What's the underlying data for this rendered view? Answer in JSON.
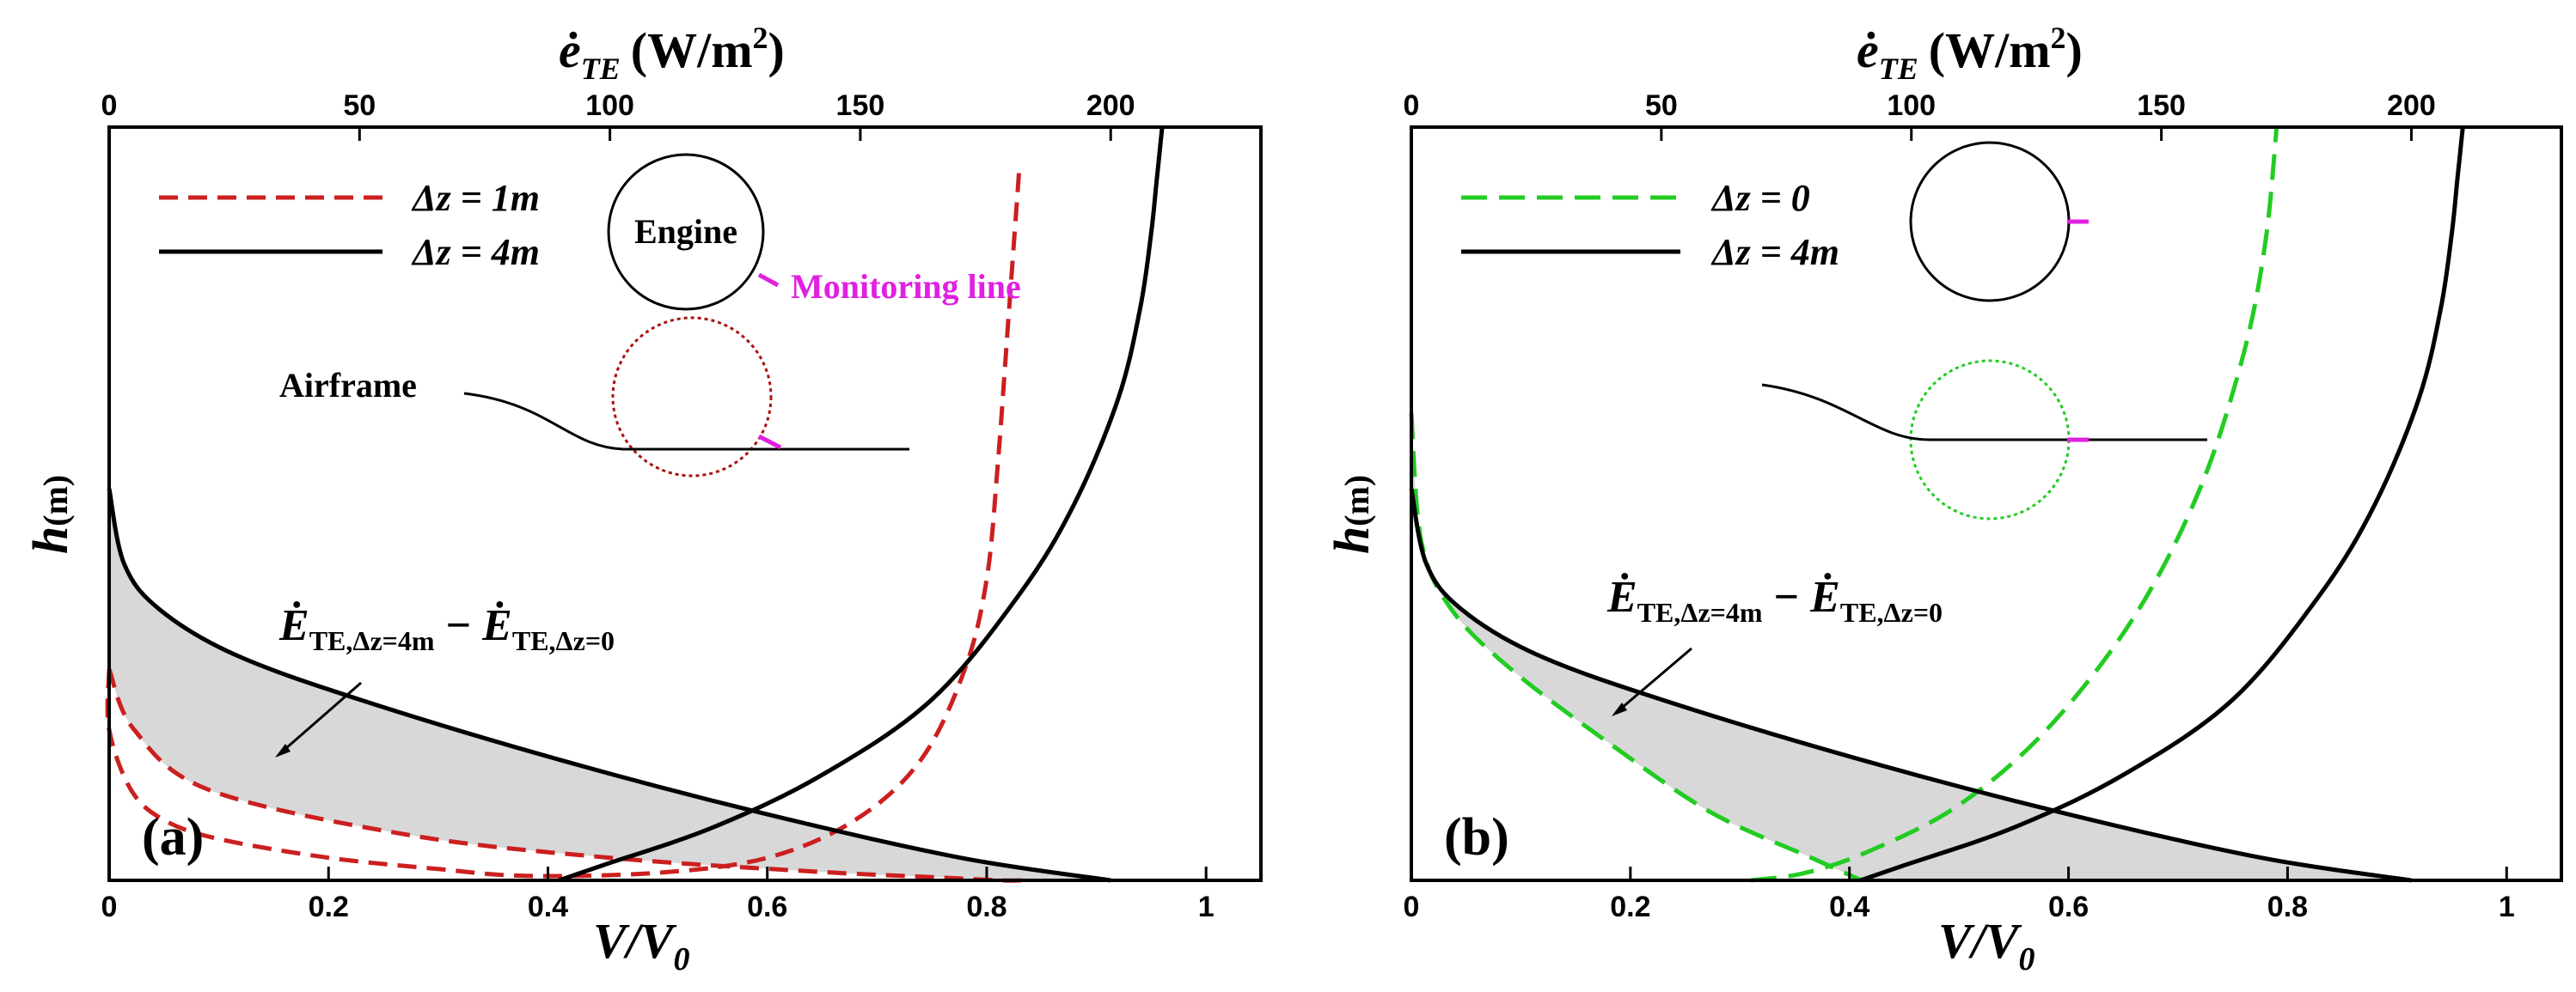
{
  "figure": {
    "panels": [
      "(a)",
      "(b)"
    ],
    "x_bottom_label": "V/V",
    "x_bottom_label_sub": "0",
    "x_top_label": "ė",
    "x_top_label_sub": "TE",
    "x_top_label_units": "(W/m",
    "x_top_label_units_sup": "2",
    "x_top_label_units_close": ")",
    "y_label": "h",
    "y_label_units": "(m)",
    "annotation_E_left": "Ė",
    "annotation_sub_left": "TE,Δz=4m",
    "annotation_minus": " − ",
    "annotation_E_right": "Ė",
    "annotation_sub_right": "TE,Δz=0"
  },
  "panel_a": {
    "legend": [
      {
        "label": "Δz = 1m",
        "color": "#cc1f1f",
        "dash": "dashed"
      },
      {
        "label": "Δz = 4m",
        "color": "#000000",
        "dash": "solid"
      }
    ],
    "engine_label": "Engine",
    "monitoring_label": "Monitoring line",
    "airframe_label": "Airframe"
  },
  "panel_b": {
    "legend": [
      {
        "label": "Δz = 0",
        "color": "#22cc22",
        "dash": "long-dashed"
      },
      {
        "label": "Δz = 4m",
        "color": "#000000",
        "dash": "solid"
      }
    ]
  },
  "chart_data": [
    {
      "type": "line",
      "title": "(a)",
      "xlabel": "V/V0",
      "ylabel": "h(m)",
      "xlim": [
        0,
        1.05
      ],
      "x_ticks": [
        "0",
        "0.2",
        "0.4",
        "0.6",
        "0.8",
        "1"
      ],
      "x2label": "e_TE (W/m^2)",
      "x2lim": [
        0,
        230
      ],
      "x2_ticks": [
        "0",
        "50",
        "100",
        "150",
        "200"
      ],
      "ylim": [
        0,
        1
      ],
      "series": [
        {
          "name": "Δz = 1m velocity",
          "axis": "bottom",
          "color": "#cc1f1f",
          "x": [
            0.0,
            0.0,
            0.02,
            0.05,
            0.1,
            0.2,
            0.3,
            0.38,
            0.5,
            0.6,
            0.68,
            0.74,
            0.78,
            0.8,
            0.81,
            0.82,
            0.83
          ],
          "y": [
            0.28,
            0.2,
            0.12,
            0.08,
            0.055,
            0.03,
            0.015,
            0.006,
            0.01,
            0.03,
            0.08,
            0.16,
            0.28,
            0.4,
            0.55,
            0.75,
            0.95
          ]
        },
        {
          "name": "Δz = 1m energy flux",
          "axis": "top",
          "color": "#cc1f1f",
          "x": [
            0.0,
            5,
            20,
            60,
            100,
            140,
            165,
            178,
            182,
            183
          ],
          "y": [
            0.28,
            0.2,
            0.12,
            0.06,
            0.03,
            0.012,
            0.004,
            0.0,
            0.0,
            0.0
          ]
        },
        {
          "name": "Δz = 4m velocity",
          "axis": "bottom",
          "color": "#000000",
          "x": [
            0.41,
            0.45,
            0.55,
            0.65,
            0.75,
            0.83,
            0.88,
            0.92,
            0.94,
            0.95,
            0.955,
            0.96
          ],
          "y": [
            0.0,
            0.02,
            0.07,
            0.14,
            0.24,
            0.38,
            0.5,
            0.64,
            0.76,
            0.86,
            0.93,
            1.0
          ]
        },
        {
          "name": "Δz = 4m energy flux",
          "axis": "top",
          "color": "#000000",
          "x": [
            0,
            3,
            10,
            25,
            50,
            90,
            130,
            170,
            200
          ],
          "y": [
            0.52,
            0.42,
            0.36,
            0.3,
            0.24,
            0.16,
            0.09,
            0.03,
            0.0
          ]
        }
      ]
    },
    {
      "type": "line",
      "title": "(b)",
      "xlabel": "V/V0",
      "ylabel": "h(m)",
      "xlim": [
        0,
        1.05
      ],
      "x_ticks": [
        "0",
        "0.2",
        "0.4",
        "0.6",
        "0.8",
        "1"
      ],
      "x2label": "e_TE (W/m^2)",
      "x2lim": [
        0,
        230
      ],
      "x2_ticks": [
        "0",
        "50",
        "100",
        "150",
        "200"
      ],
      "ylim": [
        0,
        1
      ],
      "series": [
        {
          "name": "Δz = 0 velocity",
          "axis": "bottom",
          "color": "#22cc22",
          "x": [
            0.31,
            0.36,
            0.42,
            0.5,
            0.58,
            0.66,
            0.72,
            0.76,
            0.78,
            0.79
          ],
          "y": [
            0.0,
            0.01,
            0.04,
            0.1,
            0.2,
            0.35,
            0.52,
            0.7,
            0.85,
            1.0
          ]
        },
        {
          "name": "Δz = 0 energy flux",
          "axis": "top",
          "color": "#22cc22",
          "x": [
            0,
            2,
            8,
            20,
            40,
            60,
            80,
            90
          ],
          "y": [
            0.62,
            0.45,
            0.36,
            0.28,
            0.18,
            0.09,
            0.03,
            0.0
          ]
        },
        {
          "name": "Δz = 4m velocity",
          "axis": "bottom",
          "color": "#000000",
          "x": [
            0.41,
            0.45,
            0.55,
            0.65,
            0.75,
            0.83,
            0.88,
            0.92,
            0.94,
            0.95,
            0.955,
            0.96
          ],
          "y": [
            0.0,
            0.02,
            0.07,
            0.14,
            0.24,
            0.38,
            0.5,
            0.64,
            0.76,
            0.86,
            0.93,
            1.0
          ]
        },
        {
          "name": "Δz = 4m energy flux",
          "axis": "top",
          "color": "#000000",
          "x": [
            0,
            3,
            10,
            25,
            50,
            90,
            130,
            170,
            200
          ],
          "y": [
            0.52,
            0.42,
            0.36,
            0.3,
            0.24,
            0.16,
            0.09,
            0.03,
            0.0
          ]
        }
      ]
    }
  ]
}
